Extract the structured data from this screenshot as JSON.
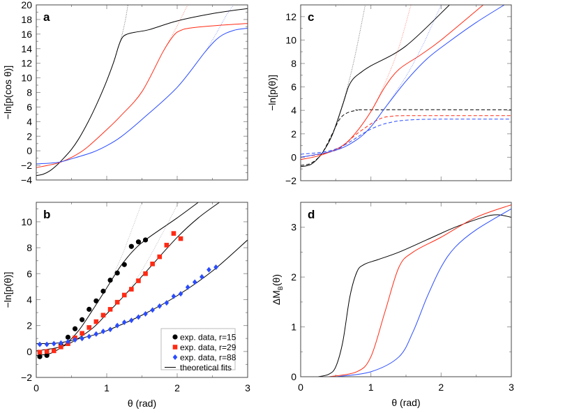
{
  "colors": {
    "r15": "#000000",
    "r29": "#ff2a14",
    "r88": "#2a4cff"
  },
  "chart_data": [
    {
      "panel": "a",
      "type": "line",
      "ylabel": "−ln[p(cos θ)]",
      "xlim": [
        0,
        3
      ],
      "ylim": [
        -4,
        20
      ],
      "yticks": [
        -4,
        -2,
        0,
        2,
        4,
        6,
        8,
        10,
        12,
        14,
        16,
        18,
        20
      ],
      "xticks": [],
      "series": [
        {
          "color": "r15",
          "style": "solid",
          "x": [
            0,
            0.1,
            0.2,
            0.3,
            0.4,
            0.5,
            0.6,
            0.7,
            0.8,
            0.9,
            1.0,
            1.1,
            1.17,
            1.22,
            1.28,
            1.4,
            1.6,
            2.0,
            2.5,
            3.0
          ],
          "y": [
            -3.4,
            -3.2,
            -2.7,
            -1.9,
            -0.9,
            0.2,
            1.6,
            3.3,
            5.2,
            7.3,
            9.6,
            12.2,
            14.4,
            15.5,
            15.95,
            16.25,
            16.6,
            17.8,
            18.8,
            19.5
          ]
        },
        {
          "color": "r15",
          "style": "dotted",
          "x": [
            1.1,
            1.17,
            1.22,
            1.27,
            1.3
          ],
          "y": [
            12.2,
            14.4,
            16.0,
            18.2,
            20
          ]
        },
        {
          "color": "r29",
          "style": "solid",
          "x": [
            0,
            0.3,
            0.5,
            0.7,
            1.0,
            1.2,
            1.5,
            1.8,
            1.95,
            2.05,
            2.2,
            2.6,
            3.0
          ],
          "y": [
            -2.3,
            -1.7,
            -0.9,
            0.3,
            2.9,
            4.8,
            8.1,
            13.6,
            15.8,
            16.5,
            16.85,
            17.2,
            17.45
          ]
        },
        {
          "color": "r29",
          "style": "dotted",
          "x": [
            1.8,
            1.95,
            2.05,
            2.15
          ],
          "y": [
            13.6,
            16.2,
            18.1,
            20
          ]
        },
        {
          "color": "r88",
          "style": "solid",
          "x": [
            0,
            0.3,
            0.5,
            0.8,
            1.0,
            1.2,
            1.5,
            2.0,
            2.4,
            2.6,
            2.8,
            3.0
          ],
          "y": [
            -1.8,
            -1.6,
            -1.1,
            -0.2,
            0.7,
            1.9,
            4.3,
            8.7,
            13.6,
            15.6,
            16.5,
            16.8
          ]
        },
        {
          "color": "r88",
          "style": "dotted",
          "x": [
            2.4,
            2.55,
            2.7,
            2.8
          ],
          "y": [
            13.6,
            16.0,
            18.6,
            20
          ]
        }
      ]
    },
    {
      "panel": "b",
      "type": "scatter",
      "ylabel": "−ln[p(θ)]",
      "xlabel": "θ (rad)",
      "xlim": [
        0,
        3
      ],
      "ylim": [
        -2,
        11.5
      ],
      "yticks": [
        -2,
        0,
        2,
        4,
        6,
        8,
        10
      ],
      "xticks": [
        0,
        1,
        2,
        3
      ],
      "legend": [
        "exp. data, r=15",
        "exp. data, r=29",
        "exp. data, r=88",
        "theoretical fits"
      ],
      "points": [
        {
          "name": "exp. data, r=15",
          "color": "r15",
          "marker": "circle",
          "x": [
            0.05,
            0.15,
            0.35,
            0.45,
            0.55,
            0.65,
            0.75,
            0.85,
            0.95,
            1.05,
            1.15,
            1.25,
            1.35,
            1.45,
            1.55
          ],
          "y": [
            -0.4,
            -0.3,
            0.5,
            1.1,
            1.75,
            2.45,
            3.25,
            3.9,
            4.65,
            5.5,
            6.05,
            6.7,
            8.1,
            8.45,
            8.6
          ]
        },
        {
          "name": "exp. data, r=29",
          "color": "r29",
          "marker": "square",
          "x": [
            0.05,
            0.15,
            0.25,
            0.35,
            0.45,
            0.55,
            0.65,
            0.75,
            0.85,
            0.95,
            1.05,
            1.15,
            1.25,
            1.35,
            1.45,
            1.55,
            1.65,
            1.75,
            1.85,
            1.95,
            2.05
          ],
          "y": [
            -0.05,
            0,
            0.05,
            0.35,
            0.6,
            1.05,
            1.4,
            1.85,
            2.3,
            2.8,
            3.25,
            3.8,
            4.35,
            4.8,
            5.45,
            6.0,
            6.75,
            7.3,
            8.2,
            9.1,
            8.7
          ]
        },
        {
          "name": "exp. data, r=88",
          "color": "r88",
          "marker": "diamond",
          "x": [
            0.05,
            0.15,
            0.25,
            0.35,
            0.45,
            0.55,
            0.65,
            0.75,
            0.85,
            0.95,
            1.05,
            1.15,
            1.25,
            1.35,
            1.45,
            1.55,
            1.65,
            1.75,
            1.85,
            1.95,
            2.05,
            2.15,
            2.25,
            2.35,
            2.45,
            2.55
          ],
          "y": [
            0.55,
            0.55,
            0.6,
            0.65,
            0.75,
            0.9,
            1.0,
            1.15,
            1.35,
            1.55,
            1.7,
            2.0,
            2.25,
            2.4,
            2.65,
            2.9,
            3.2,
            3.5,
            3.75,
            4.25,
            4.45,
            4.95,
            5.35,
            5.75,
            6.3,
            6.5
          ]
        }
      ],
      "series": [
        {
          "name": "theoretical fits",
          "color": "r15",
          "style": "solid",
          "x": [
            0,
            0.2,
            0.4,
            0.6,
            0.8,
            1.0,
            1.2,
            1.4,
            1.6,
            2.0,
            2.3
          ],
          "y": [
            -0.3,
            -0.15,
            0.5,
            1.6,
            3.2,
            4.9,
            6.6,
            7.9,
            8.8,
            10.3,
            11.5
          ]
        },
        {
          "color": "r15",
          "style": "solid",
          "x": [
            0,
            0.3,
            0.5,
            0.8,
            1.0,
            1.3,
            1.6,
            2.0,
            2.3,
            2.6
          ],
          "y": [
            0.05,
            0.3,
            0.7,
            1.8,
            2.9,
            4.6,
            6.4,
            8.8,
            10.3,
            11.5
          ]
        },
        {
          "color": "r15",
          "style": "solid",
          "x": [
            0,
            0.3,
            0.5,
            0.8,
            1.0,
            1.5,
            2.0,
            2.5,
            3.0
          ],
          "y": [
            0.6,
            0.65,
            0.85,
            1.25,
            1.6,
            2.8,
            4.3,
            6.2,
            8.6
          ]
        },
        {
          "color": "grey",
          "style": "dotted",
          "x": [
            0.8,
            1.0,
            1.2,
            1.35,
            1.5
          ],
          "y": [
            3.2,
            4.9,
            7.2,
            9.3,
            11.5
          ]
        },
        {
          "color": "grey",
          "style": "dotted",
          "x": [
            1.2,
            1.4,
            1.6,
            1.8,
            2.02
          ],
          "y": [
            4.0,
            5.4,
            7.2,
            9.2,
            11.5
          ]
        }
      ]
    },
    {
      "panel": "c",
      "type": "line",
      "ylabel": "−ln[p(θ)]",
      "xlim": [
        0,
        3
      ],
      "ylim": [
        -2,
        13
      ],
      "yticks": [
        -2,
        0,
        2,
        4,
        6,
        8,
        10,
        12
      ],
      "xticks": [],
      "series": [
        {
          "color": "r15",
          "style": "solid",
          "x": [
            0,
            0.15,
            0.3,
            0.45,
            0.6,
            0.68,
            0.75,
            0.85,
            1.0,
            1.5,
            2.12
          ],
          "y": [
            -0.8,
            -0.6,
            0.3,
            1.9,
            4.5,
            6.0,
            6.7,
            7.2,
            7.8,
            9.5,
            13
          ]
        },
        {
          "color": "r15",
          "style": "dotted",
          "x": [
            0.45,
            0.6,
            0.75,
            0.92
          ],
          "y": [
            1.9,
            4.6,
            8.0,
            13
          ]
        },
        {
          "color": "r15",
          "style": "dashed",
          "x": [
            0,
            0.15,
            0.3,
            0.45,
            0.55,
            0.65,
            0.8,
            1.0,
            3.0
          ],
          "y": [
            -0.7,
            -0.5,
            0.3,
            2.0,
            3.2,
            3.75,
            4.0,
            4.05,
            4.05
          ]
        },
        {
          "color": "r29",
          "style": "solid",
          "x": [
            0,
            0.3,
            0.6,
            0.8,
            1.0,
            1.2,
            1.4,
            1.7,
            2.0,
            2.6
          ],
          "y": [
            -0.2,
            0.2,
            1.0,
            2.2,
            3.9,
            6.0,
            7.5,
            8.7,
            10.0,
            13
          ]
        },
        {
          "color": "r29",
          "style": "dotted",
          "x": [
            0.8,
            1.0,
            1.2,
            1.4,
            1.57
          ],
          "y": [
            2.2,
            3.9,
            6.3,
            9.4,
            13
          ]
        },
        {
          "color": "r29",
          "style": "dashed",
          "x": [
            0,
            0.5,
            0.8,
            1.1,
            1.3,
            1.6,
            3.0
          ],
          "y": [
            0,
            0.6,
            2.0,
            3.2,
            3.5,
            3.55,
            3.55
          ]
        },
        {
          "color": "r88",
          "style": "solid",
          "x": [
            0,
            0.5,
            0.8,
            1.0,
            1.2,
            1.5,
            1.8,
            2.1,
            2.5,
            2.9
          ],
          "y": [
            0,
            0.6,
            1.5,
            2.6,
            4.2,
            6.5,
            8.4,
            9.8,
            11.5,
            13
          ]
        },
        {
          "color": "r88",
          "style": "dotted",
          "x": [
            1.2,
            1.5,
            1.75,
            2.0
          ],
          "y": [
            4.2,
            6.9,
            9.7,
            13
          ]
        },
        {
          "color": "r88",
          "style": "dashed",
          "x": [
            0,
            0.5,
            1.0,
            1.3,
            1.6,
            2.0,
            3.0
          ],
          "y": [
            0.25,
            0.7,
            2.4,
            3.0,
            3.2,
            3.25,
            3.25
          ]
        }
      ]
    },
    {
      "panel": "d",
      "type": "line",
      "ylabel": "ΔM",
      "ylabel_sub": "B",
      "ylabel_tail": "(θ)",
      "xlabel": "θ (rad)",
      "xlim": [
        0,
        3
      ],
      "ylim": [
        0,
        3.5
      ],
      "yticks": [
        0,
        1,
        2,
        3
      ],
      "xticks": [
        0,
        1,
        2,
        3
      ],
      "series": [
        {
          "color": "r15",
          "style": "solid",
          "x": [
            0.25,
            0.4,
            0.5,
            0.6,
            0.7,
            0.8,
            0.9,
            1.1,
            1.4,
            1.8,
            2.2,
            2.6,
            2.8,
            3.0
          ],
          "y": [
            0,
            0.05,
            0.2,
            0.7,
            1.6,
            2.1,
            2.25,
            2.35,
            2.5,
            2.75,
            3.0,
            3.2,
            3.25,
            3.2
          ]
        },
        {
          "color": "r29",
          "style": "solid",
          "x": [
            0.4,
            0.8,
            1.0,
            1.2,
            1.4,
            1.6,
            2.0,
            2.5,
            3.0
          ],
          "y": [
            0,
            0.1,
            0.4,
            1.3,
            2.2,
            2.5,
            2.8,
            3.2,
            3.45
          ]
        },
        {
          "color": "r88",
          "style": "solid",
          "x": [
            0.5,
            1.0,
            1.4,
            1.6,
            1.8,
            2.0,
            2.2,
            2.5,
            3.0
          ],
          "y": [
            0,
            0.1,
            0.4,
            0.9,
            1.6,
            2.2,
            2.6,
            2.95,
            3.37
          ]
        }
      ]
    }
  ]
}
